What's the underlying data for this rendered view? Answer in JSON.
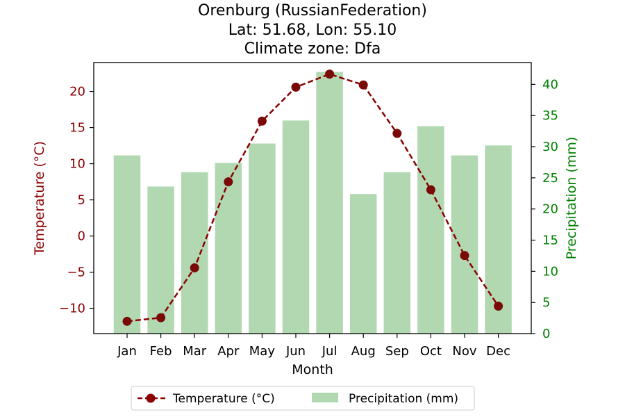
{
  "chart_data": {
    "type": "bar+line",
    "title_lines": [
      "Orenburg (RussianFederation)",
      "Lat: 51.68, Lon: 55.10",
      "Climate zone: Dfa"
    ],
    "xlabel": "Month",
    "ylabel_left": "Temperature (°C)",
    "ylabel_right": "Precipitation (mm)",
    "categories": [
      "Jan",
      "Feb",
      "Mar",
      "Apr",
      "May",
      "Jun",
      "Jul",
      "Aug",
      "Sep",
      "Oct",
      "Nov",
      "Dec"
    ],
    "y_left_lim": [
      -13.5,
      24.0
    ],
    "y_right_lim": [
      0,
      43.5
    ],
    "y_left_ticks": [
      20,
      15,
      10,
      5,
      0,
      -5,
      -10
    ],
    "y_left_tick_labels": [
      "20",
      "15",
      "10",
      "5",
      "0",
      "−5",
      "−10"
    ],
    "y_right_ticks": [
      40,
      35,
      30,
      25,
      20,
      15,
      10,
      5,
      0
    ],
    "y_right_tick_labels": [
      "40",
      "35",
      "30",
      "25",
      "20",
      "15",
      "10",
      "5",
      "0"
    ],
    "series": [
      {
        "name": "Temperature (°C)",
        "kind": "line",
        "axis": "left",
        "style": "dashed-with-circle-markers",
        "values": [
          -11.8,
          -11.3,
          -4.4,
          7.5,
          15.9,
          20.6,
          22.4,
          20.9,
          14.2,
          6.4,
          -2.7,
          -9.7
        ]
      },
      {
        "name": "Precipitation (mm)",
        "kind": "bar",
        "axis": "right",
        "values": [
          28.6,
          23.6,
          25.9,
          27.4,
          30.5,
          34.2,
          42.0,
          22.4,
          25.9,
          33.3,
          28.6,
          30.2
        ]
      }
    ],
    "legend_position": "bottom-center",
    "grid": false,
    "colors": {
      "temperature": "#8b0000",
      "precipitation": "#b2d8b2",
      "right_axis": "#008000"
    }
  }
}
